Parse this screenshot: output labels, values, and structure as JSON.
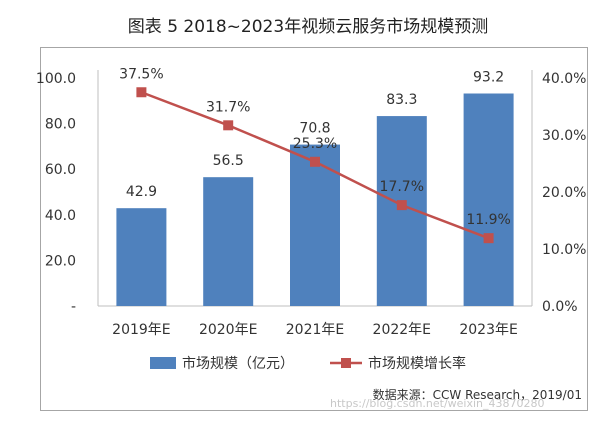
{
  "title": "图表 5 2018~2023年视频云服务市场规模预测",
  "chart_data": {
    "type": "bar",
    "categories": [
      "2019年E",
      "2020年E",
      "2021年E",
      "2022年E",
      "2023年E"
    ],
    "series": [
      {
        "name": "市场规模（亿元）",
        "type": "bar",
        "axis": "left",
        "color": "#4f81bd",
        "values": [
          42.9,
          56.5,
          70.8,
          83.3,
          93.2
        ],
        "labels": [
          "42.9",
          "56.5",
          "70.8",
          "83.3",
          "93.2"
        ]
      },
      {
        "name": "市场规模增长率",
        "type": "line",
        "axis": "right",
        "color": "#c0504d",
        "values": [
          37.5,
          31.7,
          25.3,
          17.7,
          11.9
        ],
        "labels": [
          "37.5%",
          "31.7%",
          "25.3%",
          "17.7%",
          "11.9%"
        ]
      }
    ],
    "ylim_left": [
      0,
      100
    ],
    "yticks_left": [
      "-",
      "20.0",
      "40.0",
      "60.0",
      "80.0",
      "100.0"
    ],
    "ylim_right": [
      0,
      40
    ],
    "yticks_right": [
      "0.0%",
      "10.0%",
      "20.0%",
      "30.0%",
      "40.0%"
    ],
    "legend_position": "bottom"
  },
  "source": "数据来源：CCW Research，2019/01",
  "watermark": "https://blog.csdn.net/weixin_43870280"
}
